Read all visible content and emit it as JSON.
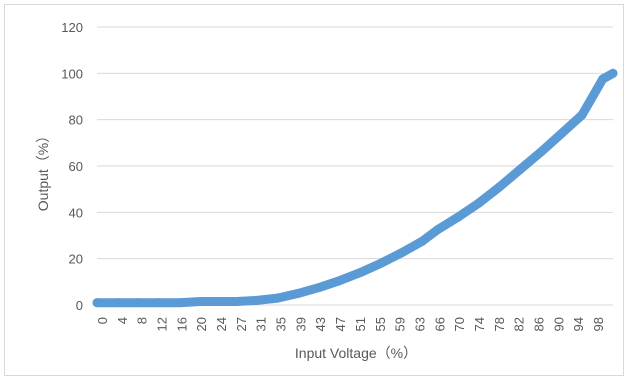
{
  "chart_data": {
    "type": "line",
    "title": "",
    "xlabel": "Input Voltage（%）",
    "ylabel": "Output（%）",
    "ylim": [
      0,
      120
    ],
    "yticks": [
      "0",
      "20",
      "40",
      "60",
      "80",
      "100",
      "120"
    ],
    "xticks": [
      "0",
      "4",
      "8",
      "12",
      "16",
      "20",
      "24",
      "27",
      "31",
      "35",
      "39",
      "43",
      "47",
      "51",
      "55",
      "59",
      "63",
      "66",
      "70",
      "74",
      "78",
      "82",
      "86",
      "90",
      "94",
      "98"
    ],
    "grid": true,
    "legend": "none",
    "series_color": "#5b9bd5",
    "series": [
      {
        "x": [
          0,
          4,
          8,
          12,
          16,
          20,
          24,
          27,
          31,
          35,
          39,
          43,
          47,
          51,
          55,
          59,
          63,
          66,
          70,
          74,
          78,
          82,
          86,
          90,
          94,
          98,
          100
        ],
        "values": [
          1,
          1,
          1,
          1,
          1,
          1.5,
          1.5,
          1.5,
          2,
          3,
          5,
          7.5,
          10.5,
          14,
          18,
          22.5,
          27.5,
          32.5,
          38,
          44,
          51,
          58.5,
          66,
          74,
          82,
          97.5,
          100
        ]
      }
    ]
  }
}
